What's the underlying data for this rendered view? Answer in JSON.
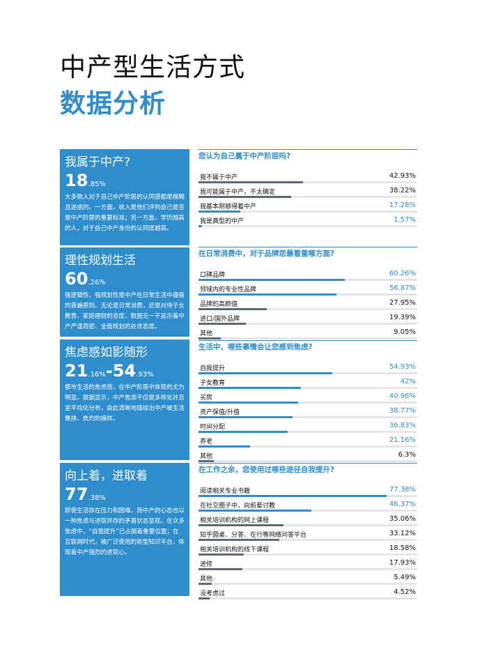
{
  "header": {
    "title": "中产型生活方式",
    "subtitle": "数据分析"
  },
  "highlights": [
    {
      "heading": "我属于中产?",
      "number_parts": [
        {
          "text": "18",
          "small": false
        },
        {
          "text": ".85%",
          "small": true
        }
      ],
      "body": "大多数人对于自己中产阶层的认同感都是模糊且迷惑的。一方面，收入是他们评判自己是否是中产阶层的重要标准；另一方面，学历越高的人，对于自己中产身份的认同度越高。"
    },
    {
      "heading": "理性规划生活",
      "number_parts": [
        {
          "text": "60",
          "small": false
        },
        {
          "text": ".26%",
          "small": true
        }
      ],
      "body": "强逻辑性、强规划性是中产在日常生活中遵循的普遍原则。无论是日常消费，还是对待子女教育、家庭理财的态度，数据无一不显示着中产严谨周密、全面规划的处世态度。"
    },
    {
      "heading": "焦虑感如影随形",
      "number_parts": [
        {
          "text": "21",
          "small": false
        },
        {
          "text": ".16%",
          "small": true
        },
        {
          "text": "-54",
          "small": false
        },
        {
          "text": ".93%",
          "small": true
        }
      ],
      "body": "都市生活的焦虑感，在中产阶层中体现的尤为明显。数据显示，中产焦虑不仅是多样化并且呈平均化分布，由此清晰地描绘出中产被生活裹挟、焦灼的模样。"
    },
    {
      "heading": "向上着，进取着",
      "number_parts": [
        {
          "text": "77",
          "small": false
        },
        {
          "text": ".38%",
          "small": true
        }
      ],
      "body": "即使生活存在压力和困难，而中产的心态也以一种焦虑与进取并存的矛盾状态呈现。在众多焦虑中，“自我提升”已占据着重要位置；在互联网时代，被广泛使用的新型知识平台，体现着中产强烈的进取心。"
    }
  ],
  "surveys": [
    {
      "question": "您认为自己属于中产阶层吗?",
      "items": [
        {
          "label": "我不属于中产",
          "value": 42.93,
          "value_label": "42.93%",
          "highlight": false
        },
        {
          "label": "我可能属于中产，不太确定",
          "value": 38.22,
          "value_label": "38.22%",
          "highlight": false
        },
        {
          "label": "我基本刚够得着中产",
          "value": 17.28,
          "value_label": "17.28%",
          "highlight": true
        },
        {
          "label": "我是典型的中产",
          "value": 1.57,
          "value_label": "1.57%",
          "highlight": true
        }
      ]
    },
    {
      "question": "在日常消费中，对于品牌您最看重哪方面?",
      "items": [
        {
          "label": "口碑品牌",
          "value": 60.26,
          "value_label": "60.26%",
          "highlight": true
        },
        {
          "label": "领域内的专业性品牌",
          "value": 56.87,
          "value_label": "56.87%",
          "highlight": true
        },
        {
          "label": "品牌的高颜值",
          "value": 27.95,
          "value_label": "27.95%",
          "highlight": false
        },
        {
          "label": "进口/国外品牌",
          "value": 19.39,
          "value_label": "19.39%",
          "highlight": false
        },
        {
          "label": "其他",
          "value": 9.05,
          "value_label": "9.05%",
          "highlight": false
        }
      ]
    },
    {
      "question": "生活中，哪些事情会让您感到焦虑?",
      "items": [
        {
          "label": "自我提升",
          "value": 54.93,
          "value_label": "54.93%",
          "highlight": true
        },
        {
          "label": "子女教育",
          "value": 42,
          "value_label": "42%",
          "highlight": true
        },
        {
          "label": "买房",
          "value": 40.96,
          "value_label": "40.96%",
          "highlight": true
        },
        {
          "label": "资产保值/升值",
          "value": 38.77,
          "value_label": "38.77%",
          "highlight": true
        },
        {
          "label": "时间分配",
          "value": 36.83,
          "value_label": "36.83%",
          "highlight": true
        },
        {
          "label": "养老",
          "value": 21.16,
          "value_label": "21.16%",
          "highlight": true
        },
        {
          "label": "其他",
          "value": 6.3,
          "value_label": "6.3%",
          "highlight": false
        }
      ]
    },
    {
      "question": "在工作之余，您使用过哪些途径自我提升?",
      "items": [
        {
          "label": "阅读相关专业书籍",
          "value": 77.38,
          "value_label": "77.38%",
          "highlight": true
        },
        {
          "label": "在社交圈子中，向前辈讨教",
          "value": 46.37,
          "value_label": "46.37%",
          "highlight": true
        },
        {
          "label": "相关培训机构的网上课程",
          "value": 35.06,
          "value_label": "35.06%",
          "highlight": false
        },
        {
          "label": "知乎圆桌、分答、在行等网络问答平台",
          "value": 33.12,
          "value_label": "33.12%",
          "highlight": false
        },
        {
          "label": "相关培训机构的线下课程",
          "value": 18.58,
          "value_label": "18.58%",
          "highlight": false
        },
        {
          "label": "进修",
          "value": 17.93,
          "value_label": "17.93%",
          "highlight": false
        },
        {
          "label": "其他",
          "value": 5.49,
          "value_label": "5.49%",
          "highlight": false
        },
        {
          "label": "没考虑过",
          "value": 4.52,
          "value_label": "4.52%",
          "highlight": false
        }
      ]
    }
  ]
}
